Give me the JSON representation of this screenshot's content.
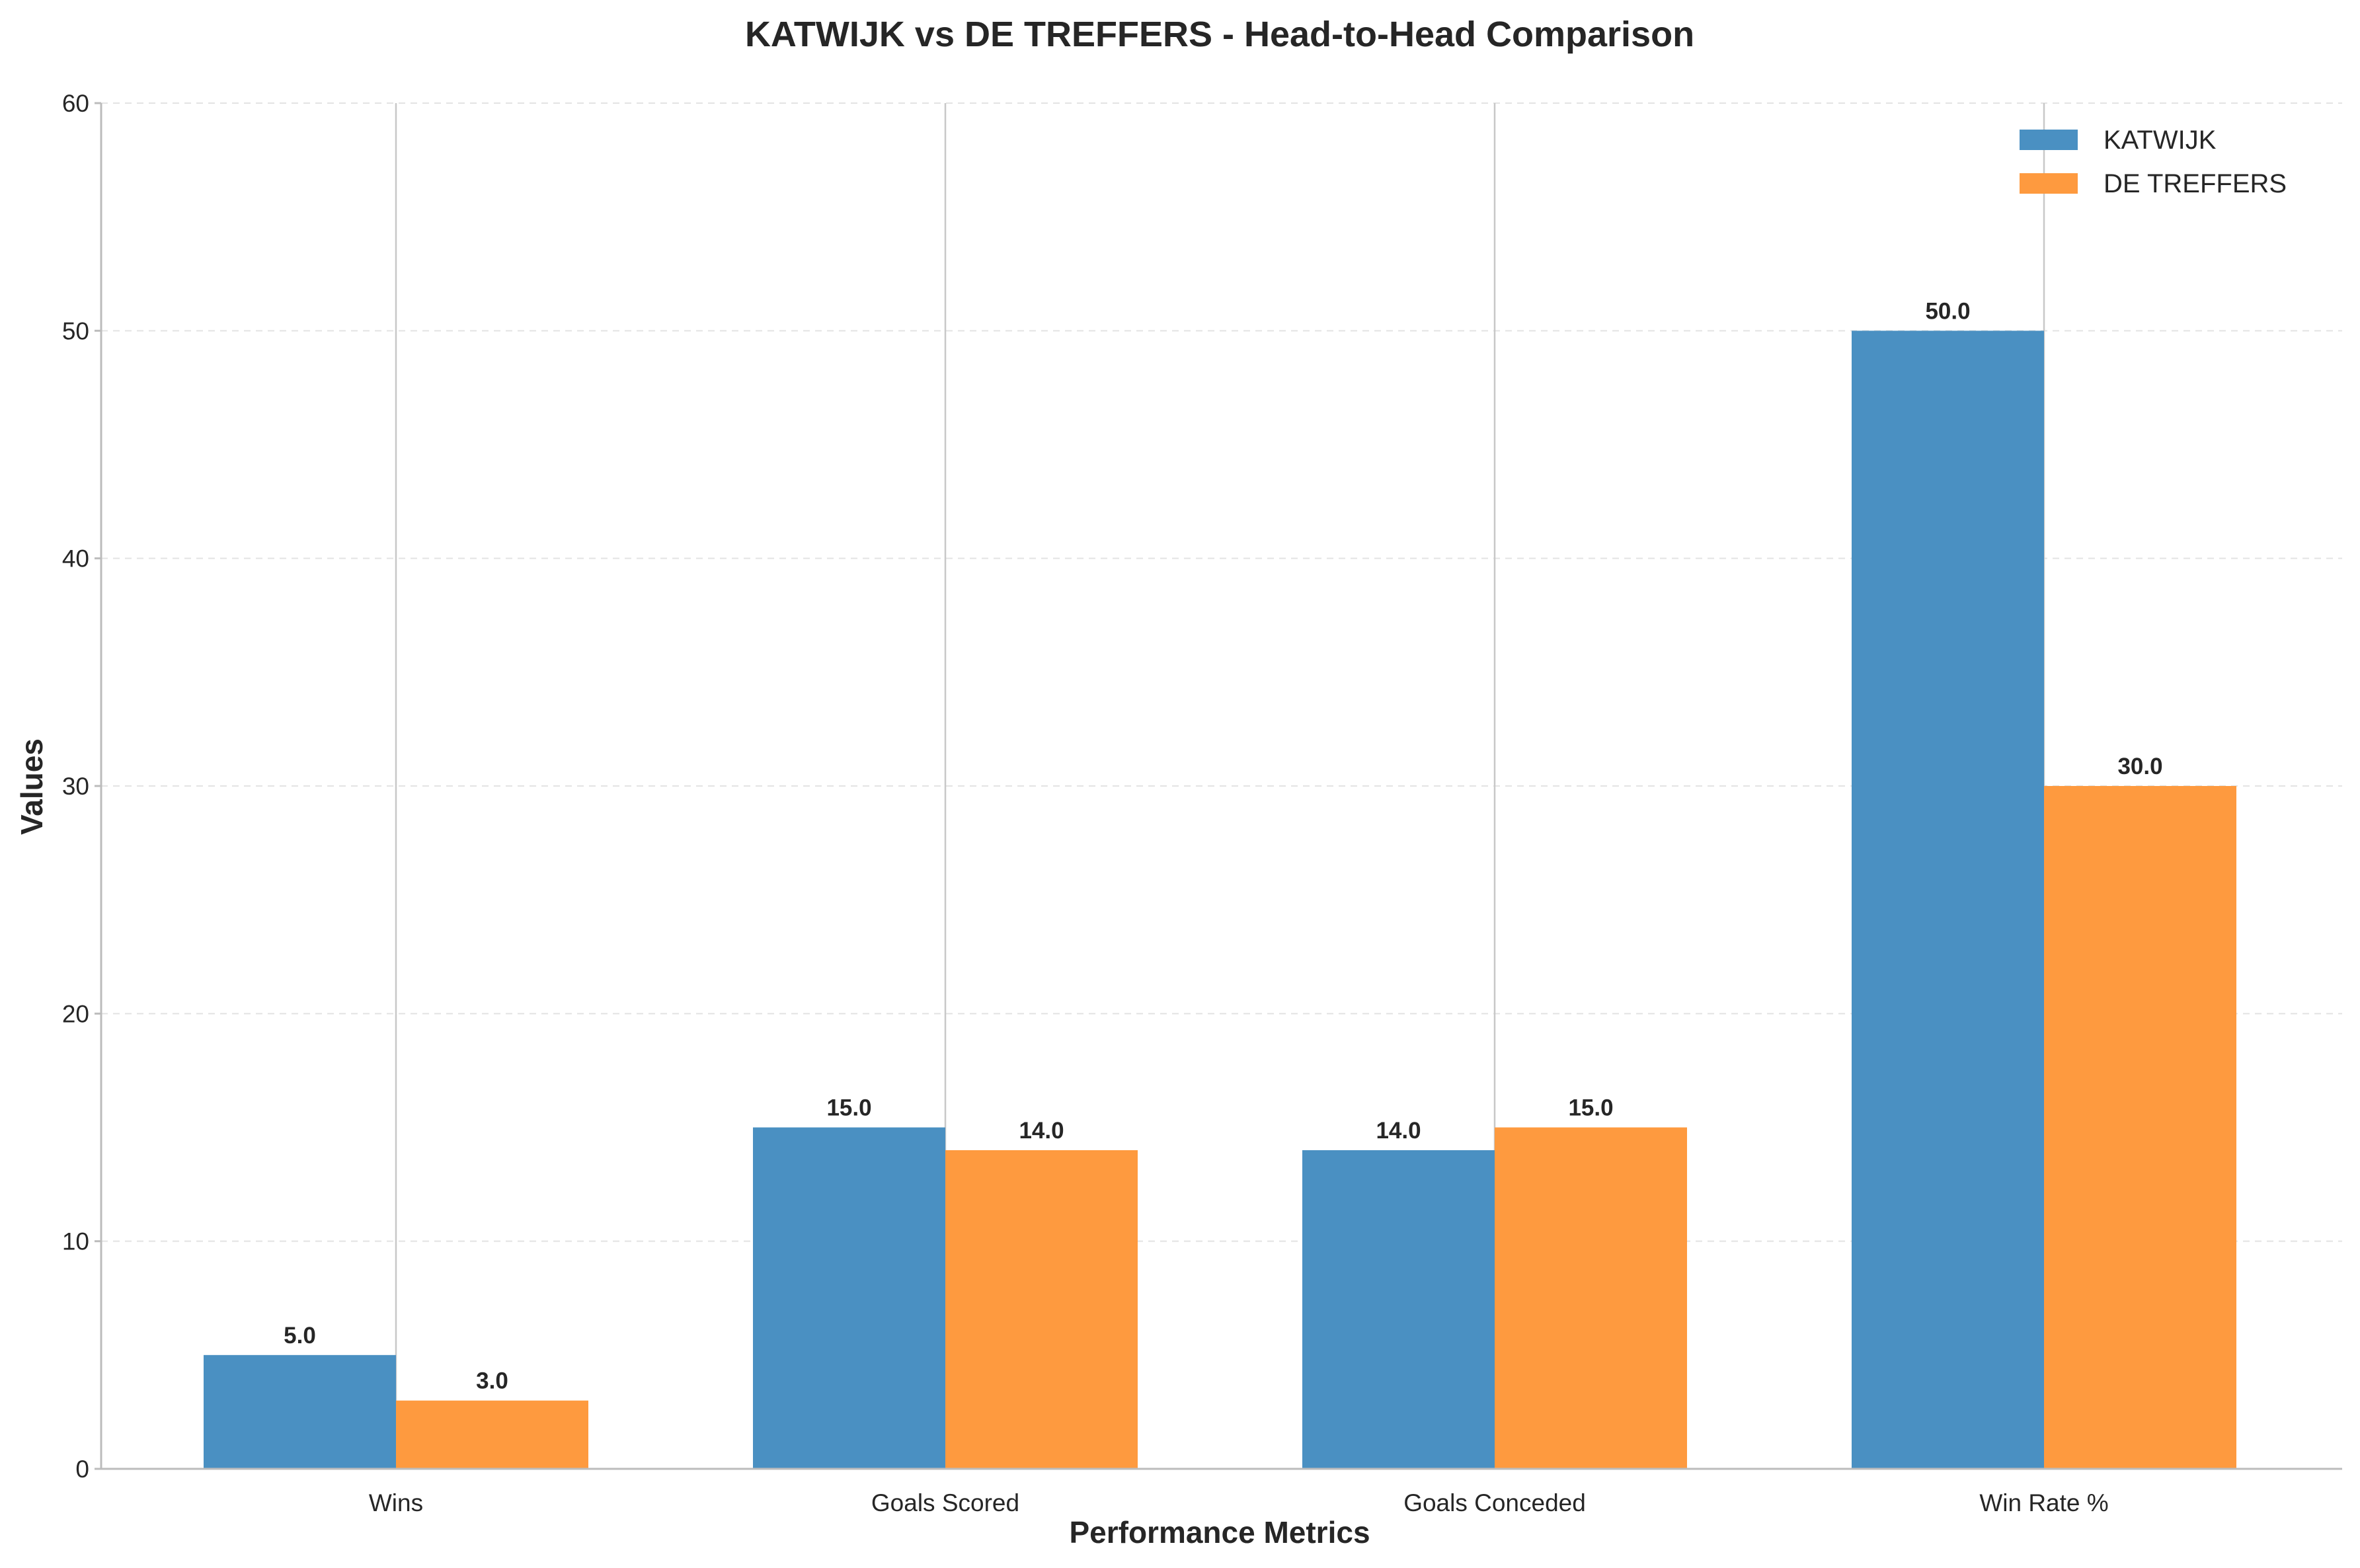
{
  "chart_data": {
    "type": "bar",
    "title": "KATWIJK vs DE TREFFERS - Head-to-Head Comparison",
    "xlabel": "Performance Metrics",
    "ylabel": "Values",
    "categories": [
      "Wins",
      "Goals Scored",
      "Goals Conceded",
      "Win Rate %"
    ],
    "series": [
      {
        "name": "KATWIJK",
        "values": [
          5.0,
          15.0,
          14.0,
          50.0
        ],
        "color": "#4a90c2",
        "value_labels": [
          "5.0",
          "15.0",
          "14.0",
          "50.0"
        ]
      },
      {
        "name": "DE TREFFERS",
        "values": [
          3.0,
          14.0,
          15.0,
          30.0
        ],
        "color": "#fe9a3f",
        "value_labels": [
          "3.0",
          "14.0",
          "15.0",
          "30.0"
        ]
      }
    ],
    "ylim": [
      0,
      60
    ],
    "yticks": [
      0,
      10,
      20,
      30,
      40,
      50,
      60
    ],
    "ytick_labels": [
      "0",
      "10",
      "20",
      "30",
      "40",
      "50",
      "60"
    ],
    "grid": "dashed horizontal",
    "legend_position": "top-right"
  }
}
